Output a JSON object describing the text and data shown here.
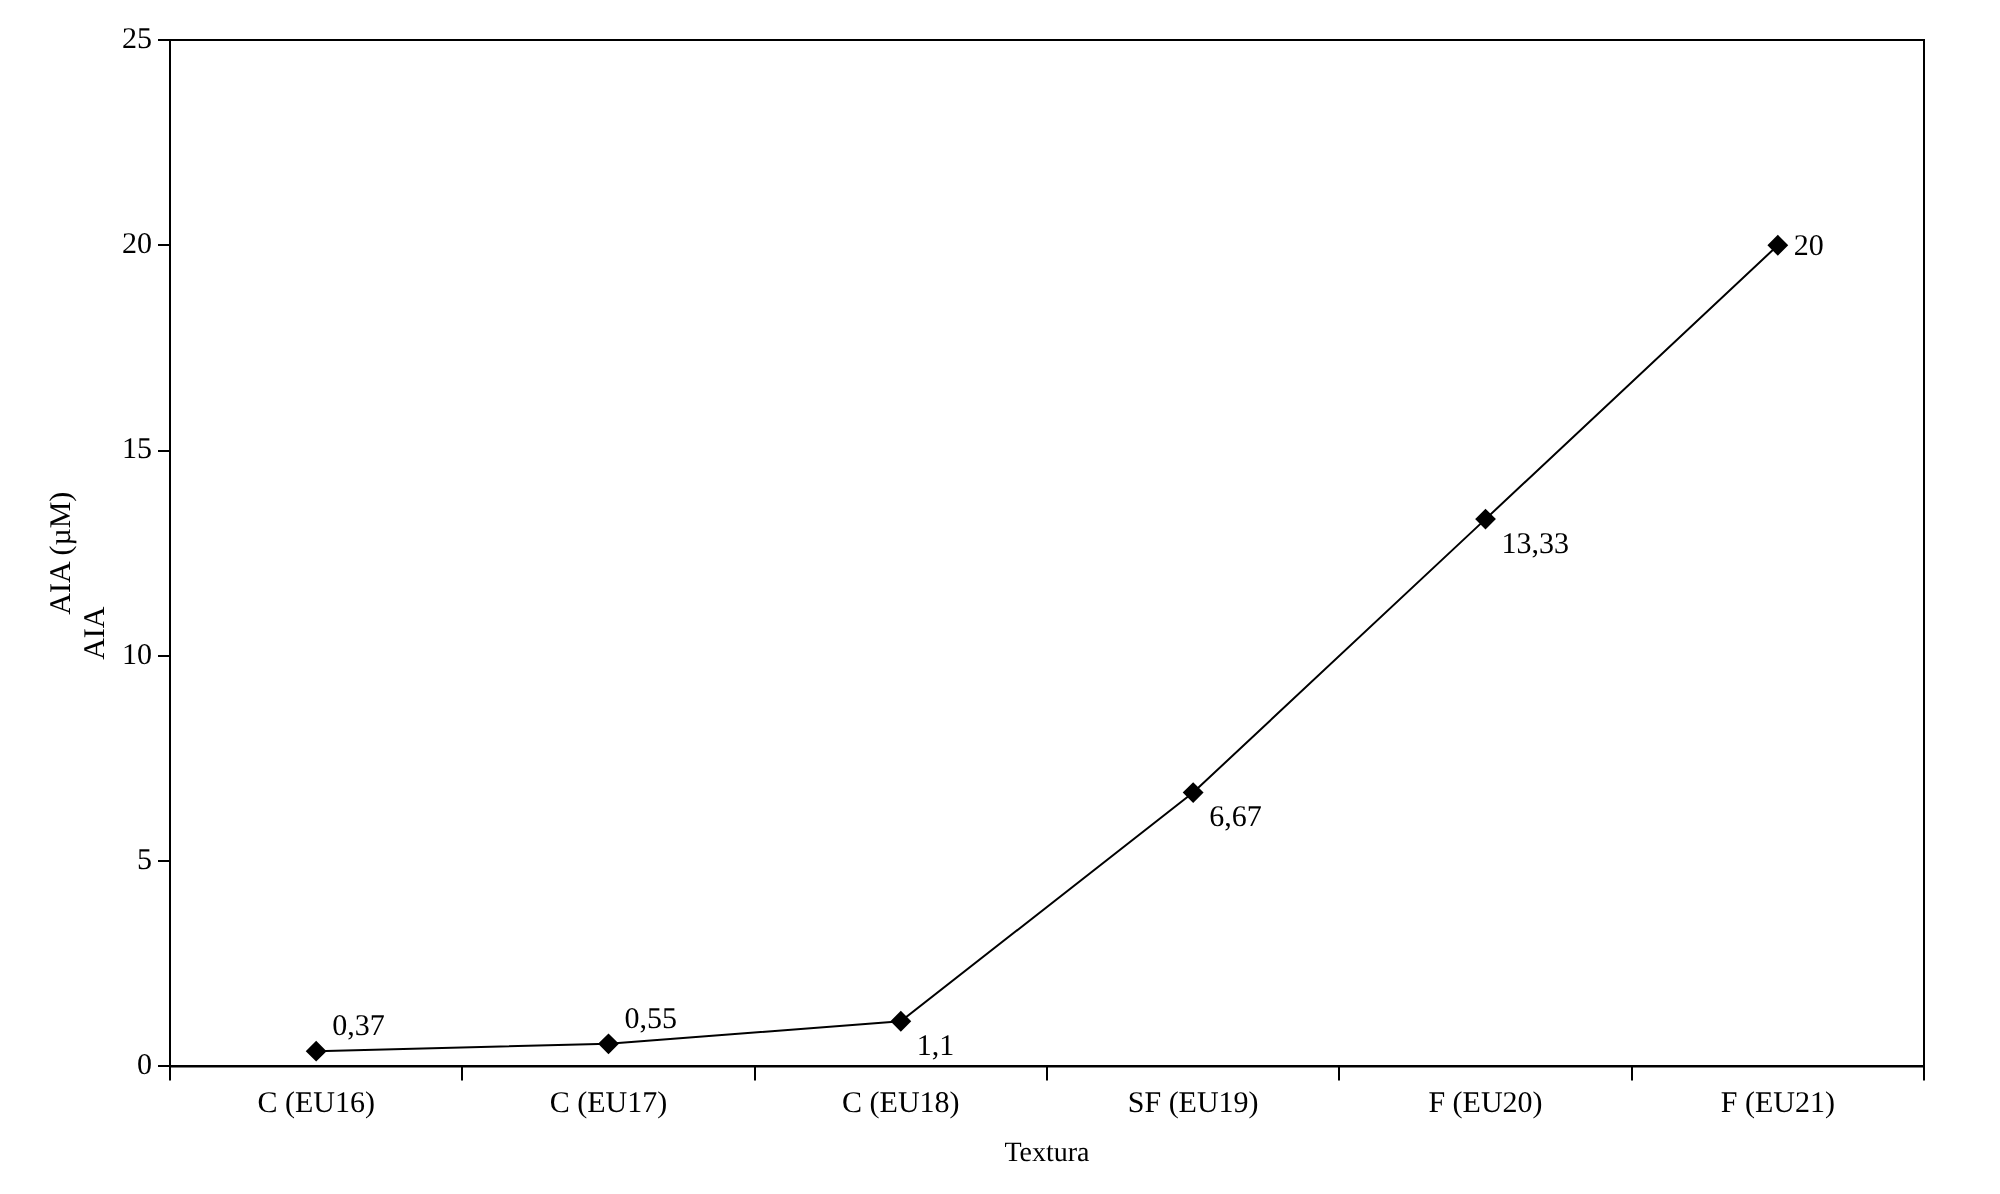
{
  "chart_data": {
    "type": "line",
    "xlabel": "Textura",
    "ylabel": "AIA (µM)",
    "annotations": [
      "AIA"
    ],
    "categories": [
      "C (EU16)",
      "C (EU17)",
      "C (EU18)",
      "SF (EU19)",
      "F (EU20)",
      "F (EU21)"
    ],
    "series": [
      {
        "color": "#000000",
        "values": [
          0.37,
          0.55,
          1.1,
          6.67,
          13.33,
          20
        ],
        "value_labels": [
          "0,37",
          "0,55",
          "1,1",
          "6,67",
          "13,33",
          "20"
        ]
      }
    ],
    "ylim": [
      0,
      25
    ],
    "yticks": [
      0,
      5,
      10,
      15,
      20,
      25
    ],
    "grid": false,
    "legend": false,
    "marker": "diamond",
    "line_style": "solid"
  }
}
